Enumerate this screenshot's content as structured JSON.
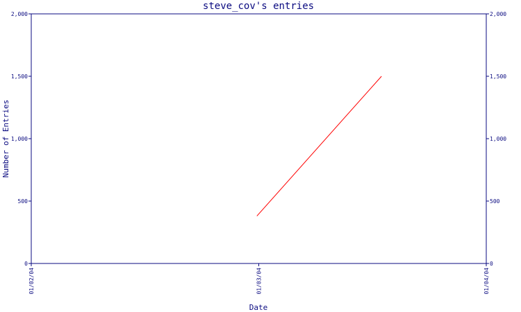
{
  "chart_data": {
    "type": "line",
    "title": "steve_cov's entries",
    "xlabel": "Date",
    "ylabel": "Number of Entries",
    "ylim": [
      0,
      2000
    ],
    "yticks": [
      0,
      500,
      1000,
      1500,
      2000
    ],
    "ytick_labels": [
      "0",
      "500",
      "1,000",
      "1,500",
      "2,000"
    ],
    "xlim": [
      "01/02/04",
      "01/04/04"
    ],
    "xticks": [
      "01/02/04",
      "01/03/04",
      "01/04/04"
    ],
    "grid": false,
    "series": [
      {
        "color": "#ff0000",
        "points": [
          {
            "x": "01/02/04 23:48",
            "y": 380
          },
          {
            "x": "01/03/04 12:57",
            "y": 1500
          }
        ]
      }
    ]
  }
}
